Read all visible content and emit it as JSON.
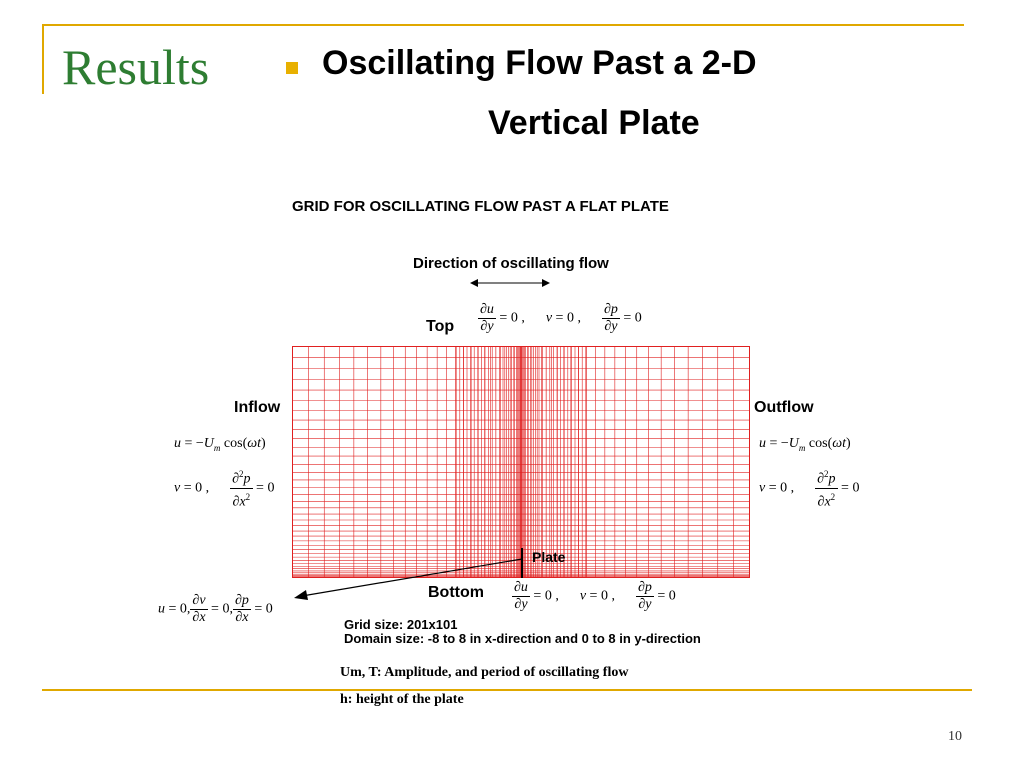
{
  "slide": {
    "title": "Results",
    "bullet_line1": "Oscillating Flow Past a 2-D",
    "bullet_line2": "Vertical Plate",
    "page_number": "10"
  },
  "figure": {
    "caption": "GRID FOR OSCILLATING FLOW PAST A FLAT PLATE",
    "direction_label": "Direction of oscillating flow",
    "top_label": "Top",
    "bottom_label": "Bottom",
    "inflow_label": "Inflow",
    "outflow_label": "Outflow",
    "plate_label": "Plate",
    "grid_size": "Grid size: 201x101",
    "domain_size": "Domain size: -8 to 8 in x-direction and 0 to 8 in y-direction",
    "grid_color": "#e02020",
    "boundary_conditions": {
      "top": [
        "∂u/∂y = 0",
        "v = 0",
        "∂p/∂y = 0"
      ],
      "bottom": [
        "∂u/∂y = 0",
        "v = 0",
        "∂p/∂y = 0"
      ],
      "inflow": [
        "u = −U_m cos(ωt)",
        "v = 0",
        "∂²p/∂x² = 0"
      ],
      "outflow": [
        "u = −U_m cos(ωt)",
        "v = 0",
        "∂²p/∂x² = 0"
      ],
      "plate": [
        "u = 0",
        "∂v/∂x = 0",
        "∂p/∂x = 0"
      ]
    }
  },
  "notes": {
    "line1": "Um, T: Amplitude, and period of oscillating flow",
    "line2": "h: height of the plate"
  },
  "colors": {
    "accent_rule": "#e0a800",
    "title_green": "#2e7d32",
    "bullet": "#e8b000"
  }
}
